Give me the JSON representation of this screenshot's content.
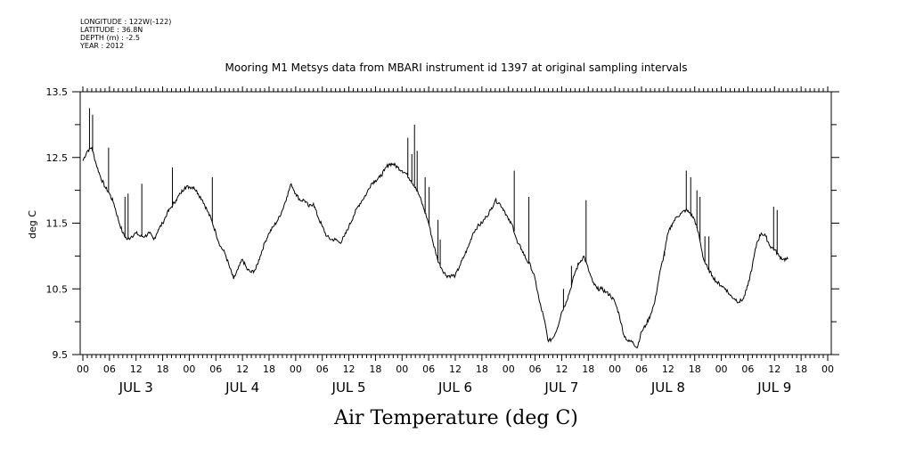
{
  "header_meta": [
    "LONGITUDE : 122W(-122)",
    "LATITUDE : 36.8N",
    "DEPTH (m) : -2.5",
    "YEAR : 2012"
  ],
  "chart_data": {
    "type": "line",
    "title": "Mooring M1 Metsys data from MBARI instrument id 1397 at original sampling intervals",
    "xlabel": "Air Temperature (deg C)",
    "ylabel": "deg C",
    "ylim": [
      9.5,
      13.5
    ],
    "yticks": [
      "9.5",
      "10.5",
      "11.5",
      "12.5",
      "13.5"
    ],
    "x_hour_labels": [
      "00",
      "06",
      "12",
      "18",
      "00",
      "06",
      "12",
      "18",
      "00",
      "06",
      "12",
      "18",
      "00",
      "06",
      "12",
      "18",
      "00",
      "06",
      "12",
      "18",
      "00",
      "06",
      "12",
      "18",
      "00",
      "06",
      "12",
      "18",
      "00"
    ],
    "day_labels": [
      "JUL  3",
      "JUL  4",
      "JUL  5",
      "JUL  6",
      "JUL  7",
      "JUL  8",
      "JUL  9"
    ],
    "x_range_hours": [
      0,
      168
    ],
    "series": [
      {
        "points": [
          [
            0,
            12.45
          ],
          [
            1,
            12.6
          ],
          [
            2,
            12.65
          ],
          [
            3,
            12.4
          ],
          [
            4,
            12.2
          ],
          [
            5,
            12.05
          ],
          [
            6,
            11.95
          ],
          [
            7,
            11.8
          ],
          [
            8,
            11.55
          ],
          [
            9,
            11.35
          ],
          [
            10,
            11.25
          ],
          [
            11,
            11.3
          ],
          [
            12,
            11.35
          ],
          [
            13,
            11.3
          ],
          [
            14,
            11.3
          ],
          [
            15,
            11.35
          ],
          [
            16,
            11.25
          ],
          [
            17,
            11.4
          ],
          [
            18,
            11.5
          ],
          [
            19,
            11.65
          ],
          [
            20,
            11.75
          ],
          [
            21,
            11.85
          ],
          [
            22,
            11.95
          ],
          [
            23,
            12.05
          ],
          [
            24,
            12.05
          ],
          [
            25,
            12.05
          ],
          [
            26,
            11.95
          ],
          [
            27,
            11.85
          ],
          [
            28,
            11.7
          ],
          [
            29,
            11.55
          ],
          [
            30,
            11.35
          ],
          [
            31,
            11.15
          ],
          [
            32,
            11.05
          ],
          [
            33,
            10.85
          ],
          [
            34,
            10.65
          ],
          [
            35,
            10.8
          ],
          [
            36,
            10.95
          ],
          [
            37,
            10.8
          ],
          [
            38,
            10.75
          ],
          [
            39,
            10.8
          ],
          [
            40,
            11.0
          ],
          [
            41,
            11.2
          ],
          [
            42,
            11.35
          ],
          [
            43,
            11.45
          ],
          [
            44,
            11.55
          ],
          [
            45,
            11.7
          ],
          [
            46,
            11.9
          ],
          [
            47,
            12.1
          ],
          [
            48,
            11.95
          ],
          [
            49,
            11.85
          ],
          [
            50,
            11.85
          ],
          [
            51,
            11.75
          ],
          [
            52,
            11.8
          ],
          [
            53,
            11.6
          ],
          [
            54,
            11.45
          ],
          [
            55,
            11.3
          ],
          [
            56,
            11.25
          ],
          [
            57,
            11.25
          ],
          [
            58,
            11.2
          ],
          [
            59,
            11.3
          ],
          [
            60,
            11.45
          ],
          [
            61,
            11.6
          ],
          [
            62,
            11.75
          ],
          [
            63,
            11.85
          ],
          [
            64,
            11.95
          ],
          [
            65,
            12.1
          ],
          [
            66,
            12.15
          ],
          [
            67,
            12.2
          ],
          [
            68,
            12.3
          ],
          [
            69,
            12.4
          ],
          [
            70,
            12.4
          ],
          [
            71,
            12.35
          ],
          [
            72,
            12.3
          ],
          [
            73,
            12.25
          ],
          [
            74,
            12.15
          ],
          [
            75,
            12.05
          ],
          [
            76,
            11.9
          ],
          [
            77,
            11.7
          ],
          [
            78,
            11.5
          ],
          [
            79,
            11.2
          ],
          [
            80,
            10.95
          ],
          [
            81,
            10.8
          ],
          [
            82,
            10.7
          ],
          [
            83,
            10.7
          ],
          [
            84,
            10.7
          ],
          [
            85,
            10.85
          ],
          [
            86,
            11.0
          ],
          [
            87,
            11.15
          ],
          [
            88,
            11.35
          ],
          [
            89,
            11.45
          ],
          [
            90,
            11.5
          ],
          [
            91,
            11.6
          ],
          [
            92,
            11.7
          ],
          [
            93,
            11.85
          ],
          [
            94,
            11.8
          ],
          [
            95,
            11.7
          ],
          [
            96,
            11.55
          ],
          [
            97,
            11.45
          ],
          [
            98,
            11.2
          ],
          [
            99,
            11.1
          ],
          [
            100,
            10.95
          ],
          [
            101,
            10.85
          ],
          [
            102,
            10.65
          ],
          [
            103,
            10.3
          ],
          [
            104,
            10.05
          ],
          [
            105,
            9.7
          ],
          [
            106,
            9.75
          ],
          [
            107,
            9.9
          ],
          [
            108,
            10.15
          ],
          [
            109,
            10.3
          ],
          [
            110,
            10.5
          ],
          [
            111,
            10.75
          ],
          [
            112,
            10.9
          ],
          [
            113,
            11.0
          ],
          [
            114,
            10.8
          ],
          [
            115,
            10.6
          ],
          [
            116,
            10.5
          ],
          [
            117,
            10.5
          ],
          [
            118,
            10.45
          ],
          [
            119,
            10.4
          ],
          [
            120,
            10.3
          ],
          [
            121,
            10.1
          ],
          [
            122,
            9.8
          ],
          [
            123,
            9.7
          ],
          [
            124,
            9.7
          ],
          [
            125,
            9.6
          ],
          [
            126,
            9.85
          ],
          [
            127,
            9.95
          ],
          [
            128,
            10.1
          ],
          [
            129,
            10.3
          ],
          [
            130,
            10.7
          ],
          [
            131,
            11.0
          ],
          [
            132,
            11.35
          ],
          [
            133,
            11.5
          ],
          [
            134,
            11.6
          ],
          [
            135,
            11.65
          ],
          [
            136,
            11.7
          ],
          [
            137,
            11.65
          ],
          [
            138,
            11.55
          ],
          [
            139,
            11.3
          ],
          [
            140,
            10.95
          ],
          [
            141,
            10.8
          ],
          [
            142,
            10.7
          ],
          [
            143,
            10.6
          ],
          [
            144,
            10.55
          ],
          [
            145,
            10.5
          ],
          [
            146,
            10.4
          ],
          [
            147,
            10.35
          ],
          [
            148,
            10.3
          ],
          [
            149,
            10.35
          ],
          [
            150,
            10.55
          ],
          [
            151,
            10.85
          ],
          [
            152,
            11.2
          ],
          [
            153,
            11.35
          ],
          [
            154,
            11.3
          ],
          [
            155,
            11.15
          ],
          [
            156,
            11.1
          ],
          [
            157,
            11.0
          ],
          [
            158,
            10.95
          ],
          [
            159,
            10.95
          ]
        ],
        "spikes": [
          [
            1.5,
            13.25
          ],
          [
            2.2,
            13.15
          ],
          [
            5.8,
            12.65
          ],
          [
            9.5,
            11.9
          ],
          [
            10.2,
            11.95
          ],
          [
            13.3,
            12.1
          ],
          [
            20.2,
            12.35
          ],
          [
            29.2,
            12.2
          ],
          [
            73.3,
            12.8
          ],
          [
            74.2,
            12.55
          ],
          [
            74.8,
            13.0
          ],
          [
            75.4,
            12.6
          ],
          [
            77.2,
            12.2
          ],
          [
            78.1,
            12.05
          ],
          [
            80.1,
            11.55
          ],
          [
            80.6,
            11.25
          ],
          [
            97.3,
            12.3
          ],
          [
            100.6,
            11.9
          ],
          [
            108.4,
            10.5
          ],
          [
            110.2,
            10.85
          ],
          [
            111.7,
            10.9
          ],
          [
            113.5,
            11.85
          ],
          [
            131.2,
            11.0
          ],
          [
            136.1,
            12.3
          ],
          [
            137.1,
            12.2
          ],
          [
            138.5,
            12.0
          ],
          [
            139.2,
            11.9
          ],
          [
            140.3,
            11.3
          ],
          [
            141.2,
            11.3
          ],
          [
            155.8,
            11.75
          ],
          [
            156.6,
            11.7
          ]
        ]
      }
    ]
  }
}
